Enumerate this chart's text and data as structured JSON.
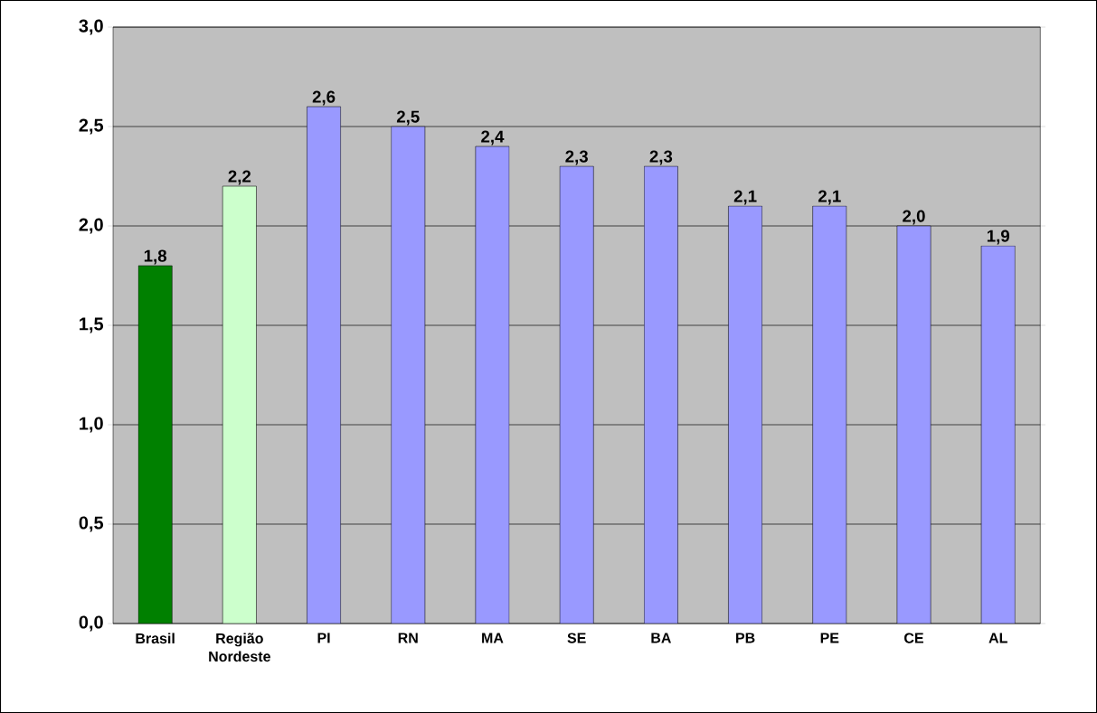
{
  "chart_data": {
    "type": "bar",
    "categories": [
      "Brasil",
      "Região Nordeste",
      "PI",
      "RN",
      "MA",
      "SE",
      "BA",
      "PB",
      "PE",
      "CE",
      "AL"
    ],
    "values": [
      1.8,
      2.2,
      2.6,
      2.5,
      2.4,
      2.3,
      2.3,
      2.1,
      2.1,
      2.0,
      1.9
    ],
    "colors": [
      "#008000",
      "#ccffcc",
      "#9999ff",
      "#9999ff",
      "#9999ff",
      "#9999ff",
      "#9999ff",
      "#9999ff",
      "#9999ff",
      "#9999ff",
      "#9999ff"
    ],
    "value_labels": [
      "1,8",
      "2,2",
      "2,6",
      "2,5",
      "2,4",
      "2,3",
      "2,3",
      "2,1",
      "2,1",
      "2,0",
      "1,9"
    ],
    "ylim": [
      0,
      3
    ],
    "yticks": [
      {
        "value": 0,
        "label": "0,0"
      },
      {
        "value": 0.5,
        "label": "0,5"
      },
      {
        "value": 1,
        "label": "1,0"
      },
      {
        "value": 1.5,
        "label": "1,5"
      },
      {
        "value": 2,
        "label": "2,0"
      },
      {
        "value": 2.5,
        "label": "2,5"
      },
      {
        "value": 3,
        "label": "3,0"
      }
    ],
    "grid": "y"
  }
}
